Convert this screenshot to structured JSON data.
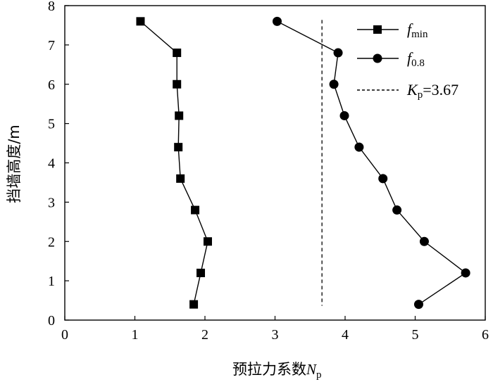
{
  "chart_data": {
    "type": "line",
    "orientation": "horizontal-x-value",
    "xlabel": "预拉力系数",
    "xlabel_symbol": "N",
    "xlabel_subscript": "p",
    "ylabel": "挡墙高度/m",
    "xlim": [
      0,
      6
    ],
    "ylim": [
      0,
      8
    ],
    "xticks": [
      "0",
      "1",
      "2",
      "3",
      "4",
      "5",
      "6"
    ],
    "yticks": [
      "0",
      "1",
      "2",
      "3",
      "4",
      "5",
      "6",
      "7",
      "8"
    ],
    "grid": false,
    "legend_position": "top-right",
    "series": [
      {
        "name": "f",
        "name_subscript": "min",
        "marker": "square",
        "color": "#000000",
        "points": [
          {
            "x": 1.08,
            "y": 7.6
          },
          {
            "x": 1.6,
            "y": 6.8
          },
          {
            "x": 1.6,
            "y": 6.0
          },
          {
            "x": 1.63,
            "y": 5.2
          },
          {
            "x": 1.62,
            "y": 4.4
          },
          {
            "x": 1.65,
            "y": 3.6
          },
          {
            "x": 1.86,
            "y": 2.8
          },
          {
            "x": 2.04,
            "y": 2.0
          },
          {
            "x": 1.94,
            "y": 1.2
          },
          {
            "x": 1.84,
            "y": 0.4
          }
        ]
      },
      {
        "name": "f",
        "name_subscript": "0.8",
        "marker": "circle",
        "color": "#000000",
        "points": [
          {
            "x": 3.03,
            "y": 7.6
          },
          {
            "x": 3.9,
            "y": 6.8
          },
          {
            "x": 3.84,
            "y": 6.0
          },
          {
            "x": 3.99,
            "y": 5.2
          },
          {
            "x": 4.2,
            "y": 4.4
          },
          {
            "x": 4.54,
            "y": 3.6
          },
          {
            "x": 4.74,
            "y": 2.8
          },
          {
            "x": 5.13,
            "y": 2.0
          },
          {
            "x": 5.72,
            "y": 1.2
          },
          {
            "x": 5.05,
            "y": 0.4
          }
        ]
      }
    ],
    "reference_line": {
      "orientation": "vertical",
      "x": 3.67,
      "y_range": [
        0.4,
        7.6
      ],
      "style": "dashed",
      "label_symbol": "K",
      "label_subscript": "p",
      "label_text": "=3.67"
    }
  }
}
